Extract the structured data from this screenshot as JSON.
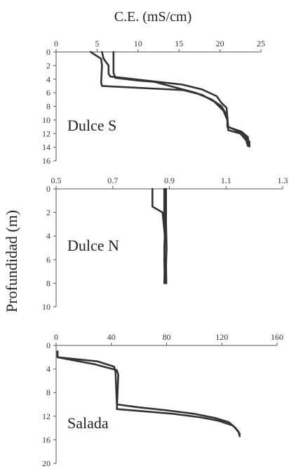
{
  "figure": {
    "top_label": "C.E. (mS/cm)",
    "y_label": "Profundidad (m)"
  },
  "chart_data": [
    {
      "type": "line",
      "title": "Dulce S",
      "xlim": [
        0,
        25
      ],
      "ylim": [
        0,
        16
      ],
      "y_inverted": true,
      "xticks": [
        0,
        5,
        10,
        15,
        20,
        25
      ],
      "yticks": [
        0,
        2,
        4,
        6,
        8,
        10,
        12,
        14,
        16
      ],
      "series": [
        {
          "points": [
            [
              4.2,
              0
            ],
            [
              5.5,
              1
            ],
            [
              5.6,
              2
            ],
            [
              5.5,
              4.5
            ],
            [
              5.6,
              5
            ],
            [
              15.5,
              5.6
            ],
            [
              17.8,
              6.3
            ],
            [
              19.3,
              7.3
            ],
            [
              20.4,
              8.6
            ],
            [
              20.9,
              10
            ],
            [
              21,
              11.5
            ],
            [
              22.5,
              12
            ],
            [
              23.2,
              13
            ],
            [
              23.4,
              13.8
            ]
          ]
        },
        {
          "points": [
            [
              5.6,
              0
            ],
            [
              5.8,
              1
            ],
            [
              6.4,
              2
            ],
            [
              6.4,
              3.2
            ],
            [
              6.6,
              3.6
            ],
            [
              15.4,
              4.8
            ],
            [
              17.8,
              5.5
            ],
            [
              19.6,
              6.5
            ],
            [
              20.2,
              7.5
            ],
            [
              20.8,
              8.2
            ],
            [
              20.9,
              9.6
            ],
            [
              20.9,
              11
            ],
            [
              22.6,
              11.7
            ],
            [
              23.4,
              12.5
            ],
            [
              23.5,
              13.6
            ]
          ]
        },
        {
          "points": [
            [
              7,
              0
            ],
            [
              7,
              3
            ],
            [
              7.2,
              3.8
            ],
            [
              10,
              4.2
            ],
            [
              12,
              4.4
            ],
            [
              14.5,
              5.2
            ],
            [
              17,
              6
            ],
            [
              19,
              7
            ],
            [
              20.2,
              8
            ],
            [
              20.9,
              9.5
            ],
            [
              21,
              11
            ],
            [
              22.8,
              12
            ],
            [
              23.6,
              13.2
            ],
            [
              23.6,
              13.9
            ]
          ]
        }
      ]
    },
    {
      "type": "line",
      "title": "Dulce N",
      "xlim": [
        0.5,
        1.3
      ],
      "ylim": [
        0,
        10
      ],
      "y_inverted": true,
      "xticks": [
        "0.5",
        "0.7",
        "0.9",
        "1.1",
        "1.3"
      ],
      "xtick_values": [
        0.5,
        0.7,
        0.9,
        1.1,
        1.3
      ],
      "yticks": [
        0,
        2,
        4,
        6,
        8,
        10
      ],
      "series": [
        {
          "points": [
            [
              0.84,
              0
            ],
            [
              0.84,
              1.5
            ],
            [
              0.876,
              2
            ],
            [
              0.882,
              3.5
            ],
            [
              0.884,
              4
            ],
            [
              0.882,
              5
            ],
            [
              0.884,
              6.5
            ],
            [
              0.882,
              8
            ]
          ]
        },
        {
          "points": [
            [
              0.882,
              0
            ],
            [
              0.882,
              2
            ],
            [
              0.884,
              4
            ],
            [
              0.882,
              6
            ],
            [
              0.884,
              8
            ]
          ]
        },
        {
          "points": [
            [
              0.888,
              0
            ],
            [
              0.888,
              3
            ],
            [
              0.89,
              5
            ],
            [
              0.888,
              6.5
            ],
            [
              0.889,
              8
            ]
          ]
        }
      ]
    },
    {
      "type": "line",
      "title": "Salada",
      "xlim": [
        0,
        160
      ],
      "ylim": [
        0,
        20
      ],
      "y_inverted": true,
      "xticks": [
        0,
        40,
        80,
        120,
        160
      ],
      "yticks": [
        0,
        4,
        8,
        12,
        16,
        20
      ],
      "series": [
        {
          "points": [
            [
              1,
              1
            ],
            [
              1,
              2
            ],
            [
              30,
              2.7
            ],
            [
              42,
              3.6
            ],
            [
              43,
              4.5
            ],
            [
              44,
              10
            ],
            [
              60,
              10.5
            ],
            [
              80,
              11
            ],
            [
              100,
              11.6
            ],
            [
              115,
              12.3
            ],
            [
              125,
              13
            ],
            [
              130,
              14
            ],
            [
              133,
              15
            ]
          ]
        },
        {
          "points": [
            [
              1,
              1
            ],
            [
              1,
              2
            ],
            [
              28,
              3.2
            ],
            [
              44,
              4.2
            ],
            [
              45,
              5
            ],
            [
              44,
              10.8
            ],
            [
              65,
              11.2
            ],
            [
              85,
              11.6
            ],
            [
              105,
              12.2
            ],
            [
              118,
              12.8
            ],
            [
              128,
              13.6
            ],
            [
              132,
              14.6
            ],
            [
              133,
              15.4
            ]
          ]
        }
      ]
    }
  ]
}
